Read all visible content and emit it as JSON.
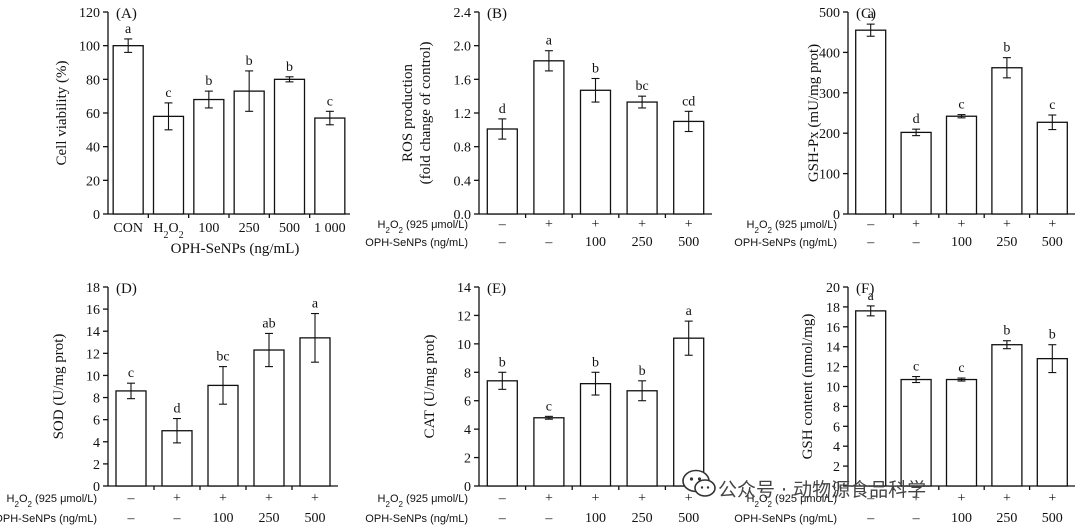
{
  "chart_data": [
    {
      "id": "A",
      "type": "bar",
      "panel_label": "(A)",
      "ylabel": "Cell viability (%)",
      "ylim": [
        0,
        120
      ],
      "yticks": [
        0,
        20,
        40,
        60,
        80,
        100,
        120
      ],
      "categories": [
        "CON",
        "H2O2",
        "100",
        "250",
        "500",
        "1 000"
      ],
      "values": [
        100,
        58,
        68,
        73,
        80,
        57
      ],
      "errors": [
        4,
        8,
        5,
        12,
        1.5,
        4
      ],
      "letters": [
        "a",
        "c",
        "b",
        "b",
        "b",
        "c"
      ],
      "xlabel": "OPH-SeNPs (ng/mL)"
    },
    {
      "id": "B",
      "type": "bar",
      "panel_label": "(B)",
      "ylabel": "ROS production (fold change of control)",
      "ylabel_line1": "ROS production",
      "ylabel_line2": "(fold change of control)",
      "ylim": [
        0,
        2.4
      ],
      "yticks": [
        "0.0",
        "0.4",
        "0.8",
        "1.2",
        "1.6",
        "2.0",
        "2.4"
      ],
      "values": [
        1.01,
        1.82,
        1.47,
        1.33,
        1.1
      ],
      "errors": [
        0.12,
        0.12,
        0.14,
        0.07,
        0.12
      ],
      "letters": [
        "d",
        "a",
        "b",
        "bc",
        "cd"
      ],
      "conditions": {
        "h2o2_label": "H2O2 (925 μmol/L)",
        "oph_label": "OPH-SeNPs (ng/mL)",
        "h2o2": [
          "–",
          "+",
          "+",
          "+",
          "+"
        ],
        "oph": [
          "–",
          "–",
          "100",
          "250",
          "500"
        ]
      }
    },
    {
      "id": "C",
      "type": "bar",
      "panel_label": "(C)",
      "ylabel": "GSH-Px (mU/mg prot)",
      "ylim": [
        0,
        500
      ],
      "yticks": [
        0,
        100,
        200,
        300,
        400,
        500
      ],
      "values": [
        455,
        202,
        242,
        362,
        227
      ],
      "errors": [
        15,
        8,
        4,
        25,
        18
      ],
      "letters": [
        "a",
        "d",
        "c",
        "b",
        "c"
      ],
      "conditions": {
        "h2o2_label": "H2O2 (925 μmol/L)",
        "oph_label": "OPH-SeNPs (ng/mL)",
        "h2o2": [
          "–",
          "+",
          "+",
          "+",
          "+"
        ],
        "oph": [
          "–",
          "–",
          "100",
          "250",
          "500"
        ]
      }
    },
    {
      "id": "D",
      "type": "bar",
      "panel_label": "(D)",
      "ylabel": "SOD (U/mg prot)",
      "ylim": [
        0,
        18
      ],
      "yticks": [
        0,
        2,
        4,
        6,
        8,
        10,
        12,
        14,
        16,
        18
      ],
      "values": [
        8.6,
        5.0,
        9.1,
        12.3,
        13.4
      ],
      "errors": [
        0.7,
        1.1,
        1.7,
        1.5,
        2.2
      ],
      "letters": [
        "c",
        "d",
        "bc",
        "ab",
        "a"
      ],
      "conditions": {
        "h2o2_label": "H2O2 (925 μmol/L)",
        "oph_label": "OPH-SeNPs (ng/mL)",
        "h2o2": [
          "–",
          "+",
          "+",
          "+",
          "+"
        ],
        "oph": [
          "–",
          "–",
          "100",
          "250",
          "500"
        ]
      }
    },
    {
      "id": "E",
      "type": "bar",
      "panel_label": "(E)",
      "ylabel": "CAT (U/mg prot)",
      "ylim": [
        0,
        14
      ],
      "yticks": [
        0,
        2,
        4,
        6,
        8,
        10,
        12,
        14
      ],
      "values": [
        7.4,
        4.8,
        7.2,
        6.7,
        10.4
      ],
      "errors": [
        0.6,
        0.1,
        0.8,
        0.7,
        1.2
      ],
      "letters": [
        "b",
        "c",
        "b",
        "b",
        "a"
      ],
      "conditions": {
        "h2o2_label": "H2O2 (925 μmol/L)",
        "oph_label": "OPH-SeNPs (ng/mL)",
        "h2o2": [
          "–",
          "+",
          "+",
          "+",
          "+"
        ],
        "oph": [
          "–",
          "–",
          "100",
          "250",
          "500"
        ]
      }
    },
    {
      "id": "F",
      "type": "bar",
      "panel_label": "(F)",
      "ylabel": "GSH content (nmol/mg)",
      "ylim": [
        0,
        20
      ],
      "yticks": [
        0,
        2,
        4,
        6,
        8,
        10,
        12,
        14,
        16,
        18,
        20
      ],
      "values": [
        17.6,
        10.7,
        10.7,
        14.2,
        12.8
      ],
      "errors": [
        0.5,
        0.3,
        0.15,
        0.4,
        1.4
      ],
      "letters": [
        "a",
        "c",
        "c",
        "b",
        "b"
      ],
      "conditions": {
        "h2o2_label": "H2O2 (925 μmol/L)",
        "oph_label": "OPH-SeNPs (ng/mL)",
        "h2o2": [
          "–",
          "+",
          "+",
          "+",
          "+"
        ],
        "oph": [
          "–",
          "–",
          "100",
          "250",
          "500"
        ]
      }
    }
  ],
  "watermark": {
    "text": "公众号 · 动物源食品科学",
    "icon": "wechat-icon"
  }
}
